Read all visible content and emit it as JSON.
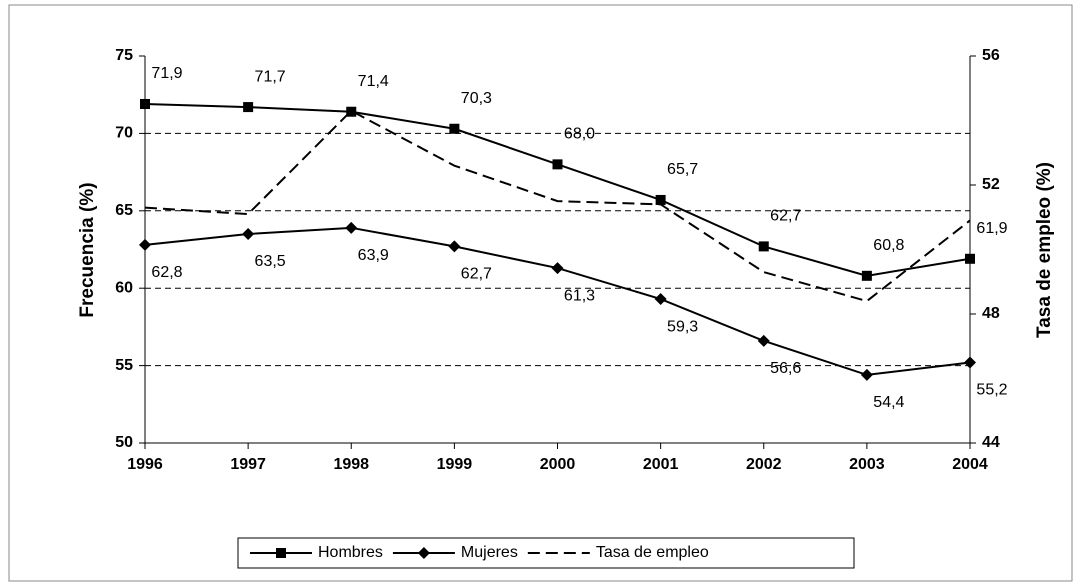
{
  "chart_data": {
    "type": "line",
    "categories": [
      "1996",
      "1997",
      "1998",
      "1999",
      "2000",
      "2001",
      "2002",
      "2003",
      "2004"
    ],
    "y_label": "Frecuencia (%)",
    "y2_label": "Tasa de empleo (%)",
    "ylim": [
      50,
      75
    ],
    "yticks": [
      50,
      55,
      60,
      65,
      70,
      75
    ],
    "y2lim": [
      44,
      56
    ],
    "y2ticks": [
      44,
      48,
      52,
      56
    ],
    "grid": true,
    "legend": "bottom",
    "series": [
      {
        "name": "Hombres",
        "color": "#000000",
        "marker": "square",
        "dash": false,
        "values": [
          71.9,
          71.7,
          71.4,
          70.3,
          68.0,
          65.7,
          62.7,
          60.8,
          61.9
        ],
        "value_labels": [
          "71,9",
          "71,7",
          "71,4",
          "70,3",
          "68,0",
          "65,7",
          "62,7",
          "60,8",
          "61,9"
        ]
      },
      {
        "name": "Mujeres",
        "color": "#000000",
        "marker": "diamond",
        "dash": false,
        "values": [
          62.8,
          63.5,
          63.9,
          62.7,
          61.3,
          59.3,
          56.6,
          54.4,
          55.2
        ],
        "value_labels": [
          "62,8",
          "63,5",
          "63,9",
          "62,7",
          "61,3",
          "59,3",
          "56,6",
          "54,4",
          "55,2"
        ]
      },
      {
        "name": "Tasa de empleo",
        "color": "#000000",
        "marker": "none",
        "dash": true,
        "axis": "y2",
        "values": [
          51.3,
          51.1,
          54.3,
          52.6,
          51.5,
          51.4,
          49.3,
          48.4,
          50.9
        ]
      }
    ]
  }
}
